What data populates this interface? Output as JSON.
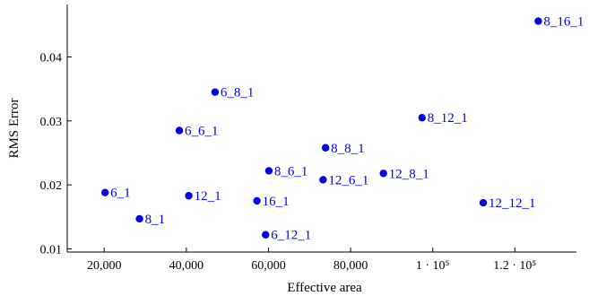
{
  "chart_data": {
    "type": "scatter",
    "title": "",
    "xlabel": "Effective area",
    "ylabel": "RMS Error",
    "xlim": [
      11000,
      135000
    ],
    "ylim": [
      0.0095,
      0.0482
    ],
    "x_ticks": [
      {
        "value": 20000,
        "label": "20,000"
      },
      {
        "value": 40000,
        "label": "40,000"
      },
      {
        "value": 60000,
        "label": "60,000"
      },
      {
        "value": 80000,
        "label": "80,000"
      },
      {
        "value": 100000,
        "label": "1 · 10⁵"
      },
      {
        "value": 120000,
        "label": "1.2 · 10⁵"
      }
    ],
    "y_ticks": [
      {
        "value": 0.01,
        "label": "0.01"
      },
      {
        "value": 0.02,
        "label": "0.02"
      },
      {
        "value": 0.03,
        "label": "0.03"
      },
      {
        "value": 0.04,
        "label": "0.04"
      }
    ],
    "grid": false,
    "marker_color": "#0000e6",
    "points": [
      {
        "label": "6_1",
        "x": 20200,
        "y": 0.0188
      },
      {
        "label": "8_1",
        "x": 28600,
        "y": 0.0147
      },
      {
        "label": "6_6_1",
        "x": 38300,
        "y": 0.0285
      },
      {
        "label": "12_1",
        "x": 40600,
        "y": 0.0183
      },
      {
        "label": "6_8_1",
        "x": 47000,
        "y": 0.0345
      },
      {
        "label": "16_1",
        "x": 57200,
        "y": 0.0175
      },
      {
        "label": "6_12_1",
        "x": 59300,
        "y": 0.0122
      },
      {
        "label": "8_6_1",
        "x": 60100,
        "y": 0.0222
      },
      {
        "label": "12_6_1",
        "x": 73300,
        "y": 0.0208
      },
      {
        "label": "8_8_1",
        "x": 73900,
        "y": 0.0258
      },
      {
        "label": "12_8_1",
        "x": 88000,
        "y": 0.0218
      },
      {
        "label": "8_12_1",
        "x": 97400,
        "y": 0.0305
      },
      {
        "label": "12_12_1",
        "x": 112300,
        "y": 0.0172
      },
      {
        "label": "8_16_1",
        "x": 125700,
        "y": 0.0456
      }
    ]
  }
}
